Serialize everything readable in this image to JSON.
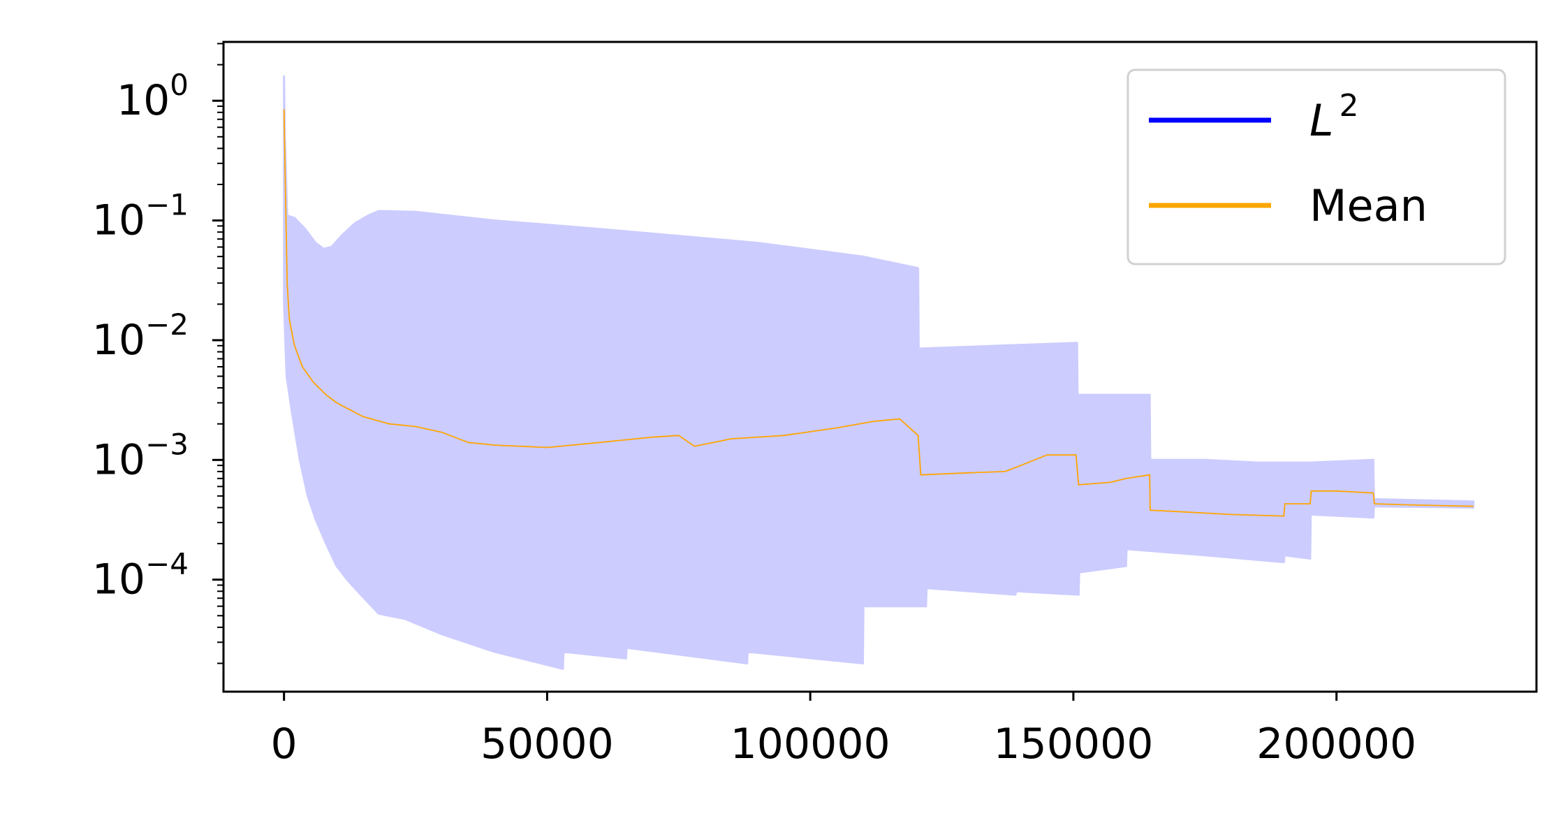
{
  "chart_data": {
    "type": "line",
    "title": "",
    "xlabel": "",
    "ylabel": "",
    "yscale": "log",
    "xlim": [
      -11500,
      238000
    ],
    "ylim": [
      1.16e-05,
      3.1
    ],
    "grid": false,
    "legend_position": "top-right",
    "x_ticks": [
      0,
      50000,
      100000,
      150000,
      200000
    ],
    "x_tick_labels": [
      "0",
      "50000",
      "100000",
      "150000",
      "200000"
    ],
    "y_ticks": [
      {
        "value": 1,
        "base": "10",
        "exp": "0"
      },
      {
        "value": 0.1,
        "base": "10",
        "exp": "−1"
      },
      {
        "value": 0.01,
        "base": "10",
        "exp": "−2"
      },
      {
        "value": 0.001,
        "base": "10",
        "exp": "−3"
      },
      {
        "value": 0.0001,
        "base": "10",
        "exp": "−4"
      }
    ],
    "legend": [
      {
        "label_base": "L",
        "label_exp": "2",
        "color": "#0000ff",
        "style": "italic"
      },
      {
        "label_base": "Mean",
        "label_exp": "",
        "color": "#ffa500",
        "style": "normal"
      }
    ],
    "colors": {
      "band": "#ccccff",
      "mean": "#ffa500",
      "l2": "#0000ff"
    },
    "series": [
      {
        "kind": "band",
        "upper": [
          [
            0,
            1.6
          ],
          [
            150,
            0.5
          ],
          [
            600,
            0.11
          ],
          [
            2000,
            0.105
          ],
          [
            4000,
            0.085
          ],
          [
            6000,
            0.065
          ],
          [
            7500,
            0.058
          ],
          [
            9000,
            0.06
          ],
          [
            11000,
            0.075
          ],
          [
            13500,
            0.095
          ],
          [
            16000,
            0.11
          ],
          [
            18000,
            0.12
          ],
          [
            25000,
            0.118
          ],
          [
            40000,
            0.1
          ],
          [
            60000,
            0.085
          ],
          [
            90000,
            0.065
          ],
          [
            110000,
            0.05
          ],
          [
            120500,
            0.04
          ],
          [
            120600,
            0.0085
          ],
          [
            150700,
            0.0095
          ],
          [
            150800,
            0.0035
          ],
          [
            164500,
            0.0035
          ],
          [
            164600,
            0.001
          ],
          [
            175000,
            0.001
          ],
          [
            185000,
            0.00095
          ],
          [
            195000,
            0.00095
          ],
          [
            207000,
            0.001
          ],
          [
            207100,
            0.00047
          ],
          [
            226000,
            0.00045
          ]
        ],
        "lower": [
          [
            0,
            0.02
          ],
          [
            500,
            0.005
          ],
          [
            1500,
            0.0025
          ],
          [
            3000,
            0.001
          ],
          [
            4500,
            0.0005
          ],
          [
            6000,
            0.00032
          ],
          [
            8000,
            0.0002
          ],
          [
            10000,
            0.00013
          ],
          [
            12000,
            0.0001
          ],
          [
            14000,
            8e-05
          ],
          [
            18000,
            5.2e-05
          ],
          [
            23000,
            4.7e-05
          ],
          [
            30000,
            3.5e-05
          ],
          [
            40000,
            2.5e-05
          ],
          [
            53000,
            1.8e-05
          ],
          [
            53100,
            2.5e-05
          ],
          [
            65000,
            2.2e-05
          ],
          [
            65100,
            2.7e-05
          ],
          [
            88000,
            2e-05
          ],
          [
            88100,
            2.5e-05
          ],
          [
            110000,
            2e-05
          ],
          [
            110100,
            6e-05
          ],
          [
            122000,
            6e-05
          ],
          [
            122100,
            8.5e-05
          ],
          [
            139000,
            7.5e-05
          ],
          [
            139100,
            8e-05
          ],
          [
            151000,
            7.5e-05
          ],
          [
            151100,
            0.000115
          ],
          [
            160000,
            0.00013
          ],
          [
            160100,
            0.00018
          ],
          [
            175000,
            0.00016
          ],
          [
            190000,
            0.00014
          ],
          [
            190100,
            0.00016
          ],
          [
            195000,
            0.00015
          ],
          [
            195100,
            0.00035
          ],
          [
            207000,
            0.00033
          ],
          [
            207100,
            0.00041
          ],
          [
            226000,
            0.0004
          ]
        ]
      },
      {
        "kind": "line",
        "name": "Mean",
        "points": [
          [
            0,
            0.85
          ],
          [
            250,
            0.2
          ],
          [
            600,
            0.03
          ],
          [
            1000,
            0.015
          ],
          [
            2000,
            0.009
          ],
          [
            3500,
            0.006
          ],
          [
            5500,
            0.0045
          ],
          [
            8000,
            0.0035
          ],
          [
            10000,
            0.003
          ],
          [
            12000,
            0.0027
          ],
          [
            15000,
            0.0023
          ],
          [
            20000,
            0.002
          ],
          [
            25000,
            0.0019
          ],
          [
            30000,
            0.0017
          ],
          [
            35000,
            0.0014
          ],
          [
            40000,
            0.00133
          ],
          [
            50000,
            0.00127
          ],
          [
            60000,
            0.0014
          ],
          [
            70000,
            0.00155
          ],
          [
            75000,
            0.0016
          ],
          [
            78000,
            0.0013
          ],
          [
            85000,
            0.0015
          ],
          [
            95000,
            0.0016
          ],
          [
            105000,
            0.00185
          ],
          [
            112000,
            0.0021
          ],
          [
            117000,
            0.0022
          ],
          [
            120500,
            0.0016
          ],
          [
            121000,
            0.00075
          ],
          [
            130000,
            0.00078
          ],
          [
            137000,
            0.0008
          ],
          [
            140000,
            0.0009
          ],
          [
            145000,
            0.0011
          ],
          [
            150500,
            0.0011
          ],
          [
            151000,
            0.00062
          ],
          [
            157000,
            0.00065
          ],
          [
            160000,
            0.0007
          ],
          [
            164500,
            0.00075
          ],
          [
            164600,
            0.00038
          ],
          [
            170000,
            0.00037
          ],
          [
            180000,
            0.00035
          ],
          [
            190000,
            0.00034
          ],
          [
            190200,
            0.00043
          ],
          [
            195000,
            0.00043
          ],
          [
            195200,
            0.00055
          ],
          [
            200000,
            0.00055
          ],
          [
            207000,
            0.00053
          ],
          [
            207200,
            0.00043
          ],
          [
            215000,
            0.00042
          ],
          [
            226000,
            0.00041
          ]
        ]
      }
    ]
  }
}
